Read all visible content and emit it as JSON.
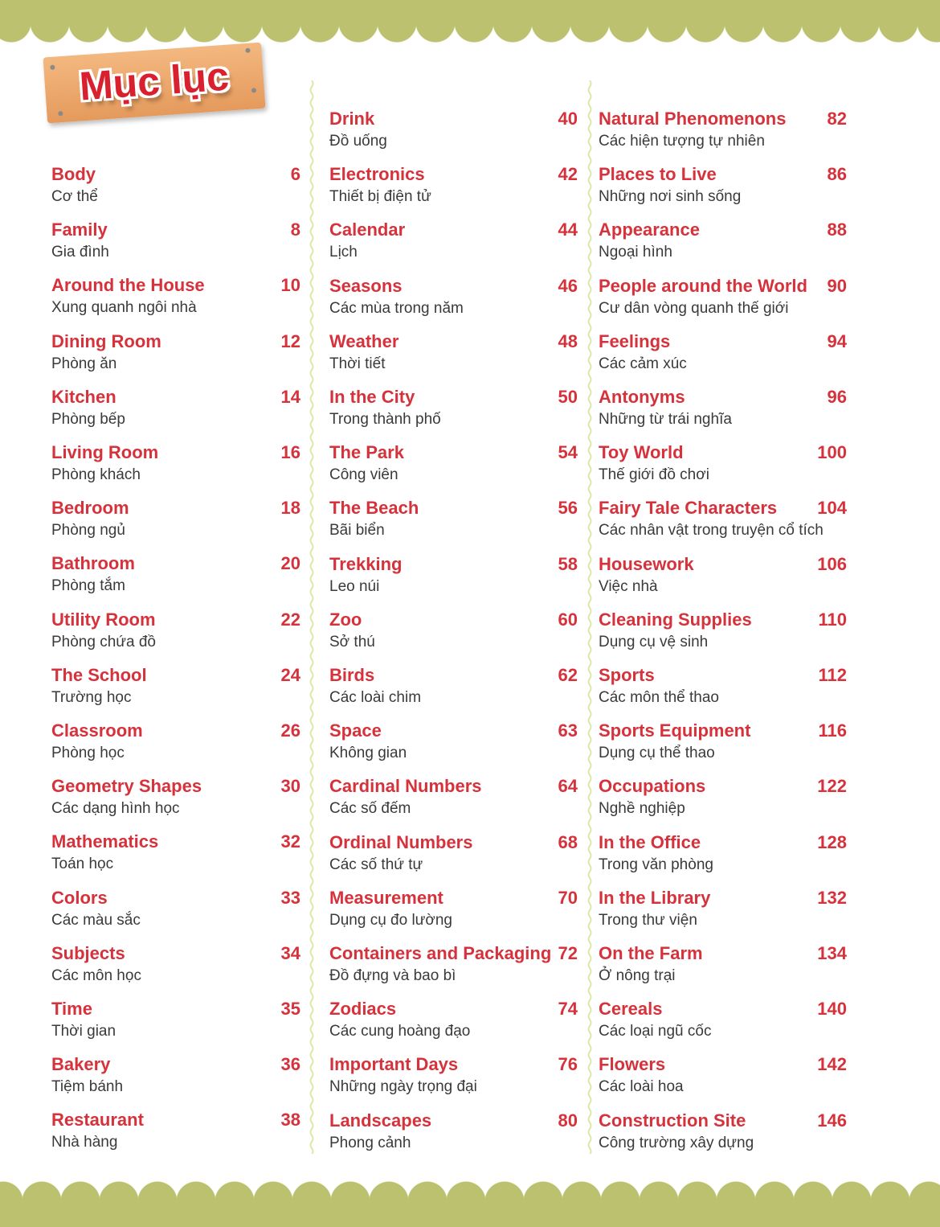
{
  "title": "Mục lục",
  "colors": {
    "accent": "#d6323c",
    "band": "#bcc16f",
    "sign": "#e8a266"
  },
  "columns": [
    [
      {
        "en": "Body",
        "vi": "Cơ thể",
        "page": "6"
      },
      {
        "en": "Family",
        "vi": "Gia đình",
        "page": "8"
      },
      {
        "en": "Around the House",
        "vi": "Xung quanh ngôi nhà",
        "page": "10"
      },
      {
        "en": "Dining Room",
        "vi": "Phòng ăn",
        "page": "12"
      },
      {
        "en": "Kitchen",
        "vi": "Phòng bếp",
        "page": "14"
      },
      {
        "en": "Living Room",
        "vi": "Phòng khách",
        "page": "16"
      },
      {
        "en": "Bedroom",
        "vi": "Phòng ngủ",
        "page": "18"
      },
      {
        "en": "Bathroom",
        "vi": "Phòng tắm",
        "page": "20"
      },
      {
        "en": "Utility Room",
        "vi": "Phòng chứa đồ",
        "page": "22"
      },
      {
        "en": "The School",
        "vi": "Trường học",
        "page": "24"
      },
      {
        "en": "Classroom",
        "vi": "Phòng học",
        "page": "26"
      },
      {
        "en": "Geometry Shapes",
        "vi": "Các dạng hình học",
        "page": "30"
      },
      {
        "en": "Mathematics",
        "vi": "Toán học",
        "page": "32"
      },
      {
        "en": "Colors",
        "vi": "Các màu sắc",
        "page": "33"
      },
      {
        "en": "Subjects",
        "vi": "Các môn học",
        "page": "34"
      },
      {
        "en": "Time",
        "vi": "Thời gian",
        "page": "35"
      },
      {
        "en": "Bakery",
        "vi": "Tiệm bánh",
        "page": "36"
      },
      {
        "en": "Restaurant",
        "vi": "Nhà hàng",
        "page": "38"
      }
    ],
    [
      {
        "en": "Drink",
        "vi": "Đồ uống",
        "page": "40"
      },
      {
        "en": "Electronics",
        "vi": "Thiết bị điện tử",
        "page": "42"
      },
      {
        "en": "Calendar",
        "vi": "Lịch",
        "page": "44"
      },
      {
        "en": "Seasons",
        "vi": "Các mùa trong năm",
        "page": "46"
      },
      {
        "en": "Weather",
        "vi": "Thời tiết",
        "page": "48"
      },
      {
        "en": "In the City",
        "vi": "Trong thành phố",
        "page": "50"
      },
      {
        "en": "The Park",
        "vi": "Công viên",
        "page": "54"
      },
      {
        "en": "The Beach",
        "vi": "Bãi biển",
        "page": "56"
      },
      {
        "en": "Trekking",
        "vi": "Leo núi",
        "page": "58"
      },
      {
        "en": "Zoo",
        "vi": "Sở thú",
        "page": "60"
      },
      {
        "en": "Birds",
        "vi": "Các loài chim",
        "page": "62"
      },
      {
        "en": "Space",
        "vi": "Không gian",
        "page": "63"
      },
      {
        "en": "Cardinal Numbers",
        "vi": "Các số đếm",
        "page": "64"
      },
      {
        "en": "Ordinal Numbers",
        "vi": "Các số thứ tự",
        "page": "68"
      },
      {
        "en": "Measurement",
        "vi": "Dụng cụ đo lường",
        "page": "70"
      },
      {
        "en": "Containers and Packaging",
        "vi": "Đồ đựng và bao bì",
        "page": "72"
      },
      {
        "en": "Zodiacs",
        "vi": "Các cung hoàng đạo",
        "page": "74"
      },
      {
        "en": "Important Days",
        "vi": "Những ngày trọng đại",
        "page": "76"
      },
      {
        "en": "Landscapes",
        "vi": "Phong cảnh",
        "page": "80"
      }
    ],
    [
      {
        "en": "Natural Phenomenons",
        "vi": "Các hiện tượng tự nhiên",
        "page": "82"
      },
      {
        "en": "Places to Live",
        "vi": "Những nơi sinh sống",
        "page": "86"
      },
      {
        "en": "Appearance",
        "vi": "Ngoại hình",
        "page": "88"
      },
      {
        "en": "People around the World",
        "vi": "Cư dân vòng quanh thế giới",
        "page": "90"
      },
      {
        "en": "Feelings",
        "vi": "Các cảm xúc",
        "page": "94"
      },
      {
        "en": "Antonyms",
        "vi": "Những từ trái nghĩa",
        "page": "96"
      },
      {
        "en": "Toy World",
        "vi": "Thế giới đồ chơi",
        "page": "100"
      },
      {
        "en": "Fairy Tale Characters",
        "vi": "Các nhân vật trong truyện cổ tích",
        "page": "104"
      },
      {
        "en": "Housework",
        "vi": "Việc nhà",
        "page": "106"
      },
      {
        "en": "Cleaning Supplies",
        "vi": "Dụng cụ vệ sinh",
        "page": "110"
      },
      {
        "en": "Sports",
        "vi": "Các môn thể thao",
        "page": "112"
      },
      {
        "en": "Sports Equipment",
        "vi": "Dụng cụ thể thao",
        "page": "116"
      },
      {
        "en": "Occupations",
        "vi": "Nghề nghiệp",
        "page": "122"
      },
      {
        "en": "In the Office",
        "vi": "Trong văn phòng",
        "page": "128"
      },
      {
        "en": "In the Library",
        "vi": "Trong thư viện",
        "page": "132"
      },
      {
        "en": "On the Farm",
        "vi": "Ở nông trại",
        "page": "134"
      },
      {
        "en": "Cereals",
        "vi": "Các loại ngũ cốc",
        "page": "140"
      },
      {
        "en": "Flowers",
        "vi": "Các loài hoa",
        "page": "142"
      },
      {
        "en": "Construction Site",
        "vi": "Công trường xây dựng",
        "page": "146"
      }
    ]
  ]
}
